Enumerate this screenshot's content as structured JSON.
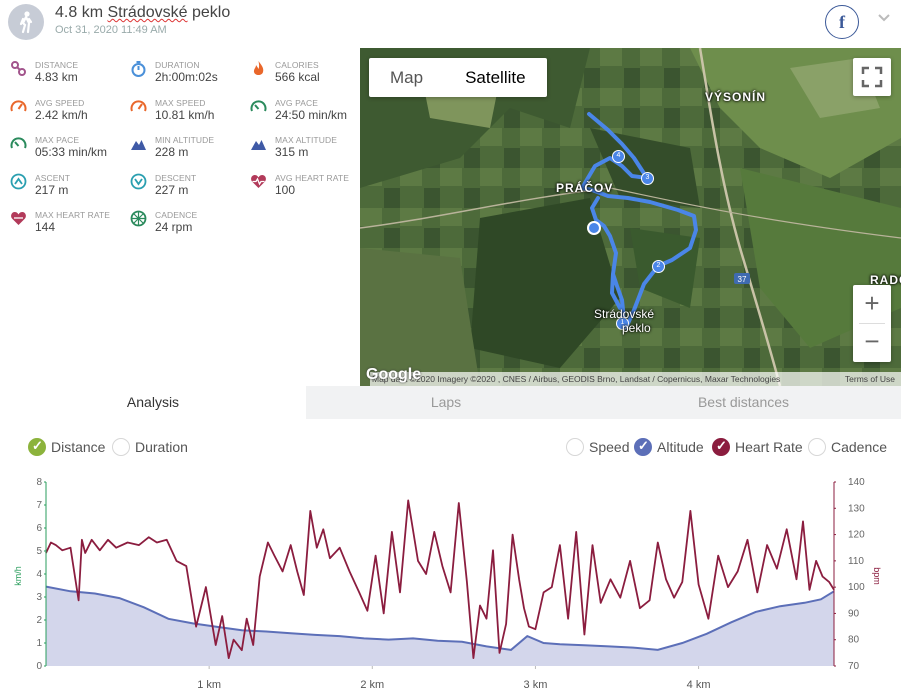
{
  "header": {
    "title_prefix": "4.8 km ",
    "title_name": "Strádovské",
    "title_rest": " peklo",
    "date": "Oct 31, 2020 11:49 AM",
    "fb_label": "f"
  },
  "stats": [
    {
      "label": "DISTANCE",
      "value": "4.83 km",
      "icon": "route-icon",
      "color": "#a2548c"
    },
    {
      "label": "DURATION",
      "value": "2h:00m:02s",
      "icon": "stopwatch-icon",
      "color": "#4a90d9"
    },
    {
      "label": "CALORIES",
      "value": "566 kcal",
      "icon": "flame-icon",
      "color": "#e9672b"
    },
    {
      "label": "AVG SPEED",
      "value": "2.42 km/h",
      "icon": "speedometer-icon",
      "color": "#e9672b"
    },
    {
      "label": "MAX SPEED",
      "value": "10.81 km/h",
      "icon": "speedometer-icon",
      "color": "#e9672b"
    },
    {
      "label": "AVG PACE",
      "value": "24:50 min/km",
      "icon": "gauge-icon",
      "color": "#2a8a5c"
    },
    {
      "label": "MAX PACE",
      "value": "05:33 min/km",
      "icon": "gauge-icon",
      "color": "#2a8a5c"
    },
    {
      "label": "MIN ALTITUDE",
      "value": "228 m",
      "icon": "mountain-icon",
      "color": "#3f5aa6"
    },
    {
      "label": "MAX ALTITUDE",
      "value": "315 m",
      "icon": "mountain-icon",
      "color": "#3f5aa6"
    },
    {
      "label": "ASCENT",
      "value": "217 m",
      "icon": "ascent-icon",
      "color": "#2a9fb0"
    },
    {
      "label": "DESCENT",
      "value": "227 m",
      "icon": "descent-icon",
      "color": "#2a9fb0"
    },
    {
      "label": "AVG HEART RATE",
      "value": "100",
      "icon": "heart-rate-icon",
      "color": "#b23a5a"
    },
    {
      "label": "MAX HEART RATE",
      "value": "144",
      "icon": "heart-icon",
      "color": "#b23a5a"
    },
    {
      "label": "CADENCE",
      "value": "24 rpm",
      "icon": "cadence-icon",
      "color": "#2a8a5c"
    }
  ],
  "map": {
    "tab_map": "Map",
    "tab_satellite": "Satellite",
    "places": [
      "VÝSONÍN",
      "PRÁČOV",
      "RADOČ",
      "Strádovské",
      "peklo"
    ],
    "road": "37",
    "markers": [
      "1",
      "2",
      "3",
      "4"
    ],
    "logo": "Google",
    "attribution": "Map data ©2020 Imagery ©2020 , CNES / Airbus, GEODIS Brno, Landsat / Copernicus, Maxar Technologies",
    "terms": "Terms of Use",
    "zoom_in": "+",
    "zoom_out": "−"
  },
  "tabs": [
    {
      "label": "Analysis"
    },
    {
      "label": "Laps"
    },
    {
      "label": "Best distances"
    }
  ],
  "axis_opts": [
    {
      "label": "Distance",
      "checked": true
    },
    {
      "label": "Duration",
      "checked": false
    }
  ],
  "series_opts": [
    {
      "label": "Speed",
      "checked": false,
      "color": "#5c6fb8"
    },
    {
      "label": "Altitude",
      "checked": true,
      "color": "#5c6fb8"
    },
    {
      "label": "Heart Rate",
      "checked": true,
      "color": "#8b1d3f"
    },
    {
      "label": "Cadence",
      "checked": false,
      "color": "#5c6fb8"
    }
  ],
  "chart_data": {
    "type": "line",
    "x_unit": "km",
    "x_ticks": [
      "1 km",
      "2 km",
      "3 km",
      "4 km"
    ],
    "y_left": {
      "label": "km/h",
      "ticks": [
        "0",
        "1",
        "2",
        "3",
        "4",
        "5",
        "6",
        "7",
        "8"
      ],
      "ylim": [
        0,
        8
      ],
      "color": "#2a9d5c"
    },
    "y_right": {
      "label": "bpm",
      "ticks": [
        "70",
        "80",
        "90",
        "100",
        "110",
        "120",
        "130",
        "140"
      ],
      "ylim": [
        70,
        140
      ],
      "color": "#8b1d3f"
    },
    "x_range": [
      0,
      4.83
    ],
    "series": [
      {
        "name": "Altitude",
        "color": "#5c6fb8",
        "fill": "#d3d6eb",
        "x": [
          0,
          0.15,
          0.3,
          0.45,
          0.6,
          0.75,
          0.9,
          1.05,
          1.2,
          1.35,
          1.5,
          1.65,
          1.8,
          1.95,
          2.1,
          2.25,
          2.4,
          2.55,
          2.7,
          2.85,
          2.95,
          3.05,
          3.15,
          3.3,
          3.45,
          3.6,
          3.75,
          3.9,
          4.05,
          4.2,
          4.35,
          4.5,
          4.65,
          4.75,
          4.83
        ],
        "values": [
          3.45,
          3.25,
          3.15,
          2.95,
          2.55,
          2.05,
          1.85,
          1.7,
          1.55,
          1.5,
          1.42,
          1.35,
          1.3,
          1.2,
          1.15,
          1.2,
          1.1,
          1.05,
          0.85,
          0.7,
          1.3,
          1.0,
          0.95,
          0.9,
          0.85,
          0.8,
          0.7,
          1.0,
          1.4,
          1.9,
          2.35,
          2.6,
          2.75,
          2.9,
          3.25
        ]
      },
      {
        "name": "Heart Rate",
        "color": "#8b1d3f",
        "x": [
          0,
          0.03,
          0.06,
          0.1,
          0.15,
          0.2,
          0.22,
          0.24,
          0.28,
          0.33,
          0.38,
          0.43,
          0.5,
          0.57,
          0.63,
          0.68,
          0.74,
          0.8,
          0.86,
          0.92,
          0.98,
          1.04,
          1.08,
          1.12,
          1.15,
          1.2,
          1.23,
          1.27,
          1.31,
          1.36,
          1.4,
          1.45,
          1.5,
          1.54,
          1.58,
          1.62,
          1.66,
          1.7,
          1.74,
          1.8,
          1.86,
          1.92,
          1.97,
          2.02,
          2.07,
          2.12,
          2.17,
          2.22,
          2.28,
          2.33,
          2.38,
          2.43,
          2.48,
          2.53,
          2.58,
          2.62,
          2.66,
          2.7,
          2.74,
          2.78,
          2.82,
          2.86,
          2.9,
          2.93,
          2.96,
          3.0,
          3.05,
          3.1,
          3.15,
          3.2,
          3.25,
          3.3,
          3.35,
          3.4,
          3.46,
          3.52,
          3.58,
          3.64,
          3.7,
          3.75,
          3.8,
          3.85,
          3.9,
          3.95,
          4.0,
          4.06,
          4.12,
          4.18,
          4.24,
          4.3,
          4.36,
          4.42,
          4.48,
          4.54,
          4.6,
          4.64,
          4.68,
          4.72,
          4.76,
          4.8,
          4.83
        ],
        "values": [
          113,
          117,
          116,
          114,
          115,
          95,
          118,
          113,
          118,
          114,
          118,
          115,
          117,
          116,
          119,
          117,
          118,
          110,
          108,
          85,
          100,
          78,
          89,
          73,
          80,
          76,
          88,
          78,
          104,
          117,
          112,
          106,
          116,
          106,
          97,
          129,
          115,
          122,
          111,
          115,
          106,
          98,
          91,
          112,
          90,
          121,
          98,
          133,
          110,
          105,
          121,
          108,
          98,
          132,
          102,
          73,
          93,
          88,
          114,
          75,
          86,
          120,
          103,
          92,
          85,
          84,
          98,
          100,
          116,
          88,
          121,
          82,
          116,
          94,
          103,
          96,
          110,
          92,
          95,
          117,
          103,
          96,
          102,
          129,
          101,
          88,
          112,
          100,
          106,
          118,
          98,
          116,
          107,
          122,
          103,
          125,
          99,
          110,
          104,
          102,
          99
        ]
      }
    ]
  }
}
